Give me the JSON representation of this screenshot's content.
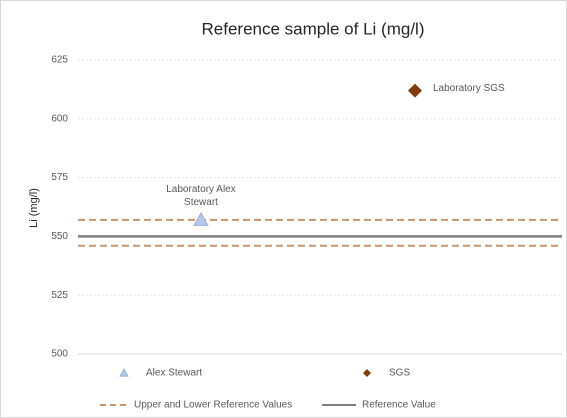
{
  "chart_data": {
    "type": "scatter",
    "title": "Reference sample of Li (mg/l)",
    "y_label": "Li (mg/l)",
    "ylim": [
      500,
      625
    ],
    "yticks": [
      500,
      525,
      550,
      575,
      600,
      625
    ],
    "grid": true,
    "series": [
      {
        "name": "Alex Stewart",
        "color": "#b4c7e7",
        "marker": "triangle",
        "values": [
          557
        ],
        "annotation": "Laboratory Alex Stewart"
      },
      {
        "name": "SGS",
        "color": "#843c0c",
        "marker": "diamond",
        "values": [
          612
        ],
        "annotation": "Laboratory SGS"
      }
    ],
    "reference_lines": [
      {
        "name": "Upper and Lower Reference Values",
        "color": "#c9956b",
        "style": "dashed",
        "values": [
          557,
          546
        ]
      },
      {
        "name": "Reference Value",
        "color": "#7f7f7f",
        "style": "solid",
        "values": [
          550
        ]
      }
    ]
  }
}
